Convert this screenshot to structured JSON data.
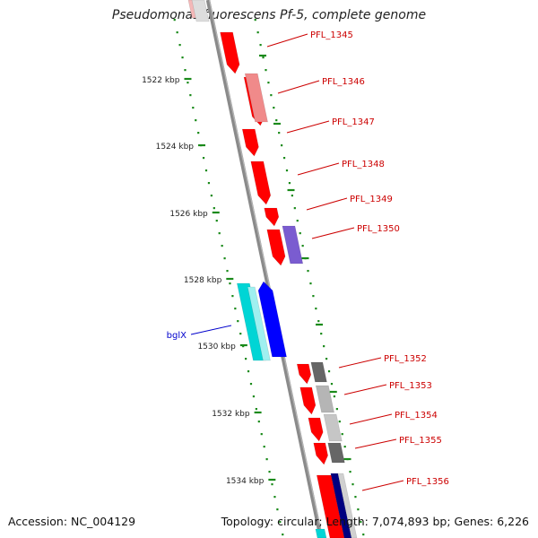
{
  "title": "Pseudomonas fluorescens Pf-5, complete genome",
  "footer": {
    "accession": "Accession: NC_004129",
    "summary": "Topology: circular; Length: 7,074,893 bp; Genes: 6,226"
  },
  "colors": {
    "backbone": "#8a8a8a",
    "tick": "#1a8a1a",
    "tick_label": "#222222",
    "gene_label": "#cc0000",
    "highlight_label": "#0000cc"
  },
  "scale": {
    "ticks": [
      {
        "label": "1522 kbp"
      },
      {
        "label": "1524 kbp"
      },
      {
        "label": "1526 kbp"
      },
      {
        "label": "1528 kbp"
      },
      {
        "label": "1530 kbp"
      },
      {
        "label": "1532 kbp"
      },
      {
        "label": "1534 kbp"
      }
    ]
  },
  "gene_labels": [
    {
      "label": "PFL_1345"
    },
    {
      "label": "PFL_1346"
    },
    {
      "label": "PFL_1347"
    },
    {
      "label": "PFL_1348"
    },
    {
      "label": "PFL_1349"
    },
    {
      "label": "PFL_1350"
    },
    {
      "label": "PFL_1352"
    },
    {
      "label": "PFL_1353"
    },
    {
      "label": "PFL_1354"
    },
    {
      "label": "PFL_1355"
    },
    {
      "label": "PFL_1356"
    }
  ],
  "highlight_labels": [
    {
      "label": "bglX"
    }
  ]
}
